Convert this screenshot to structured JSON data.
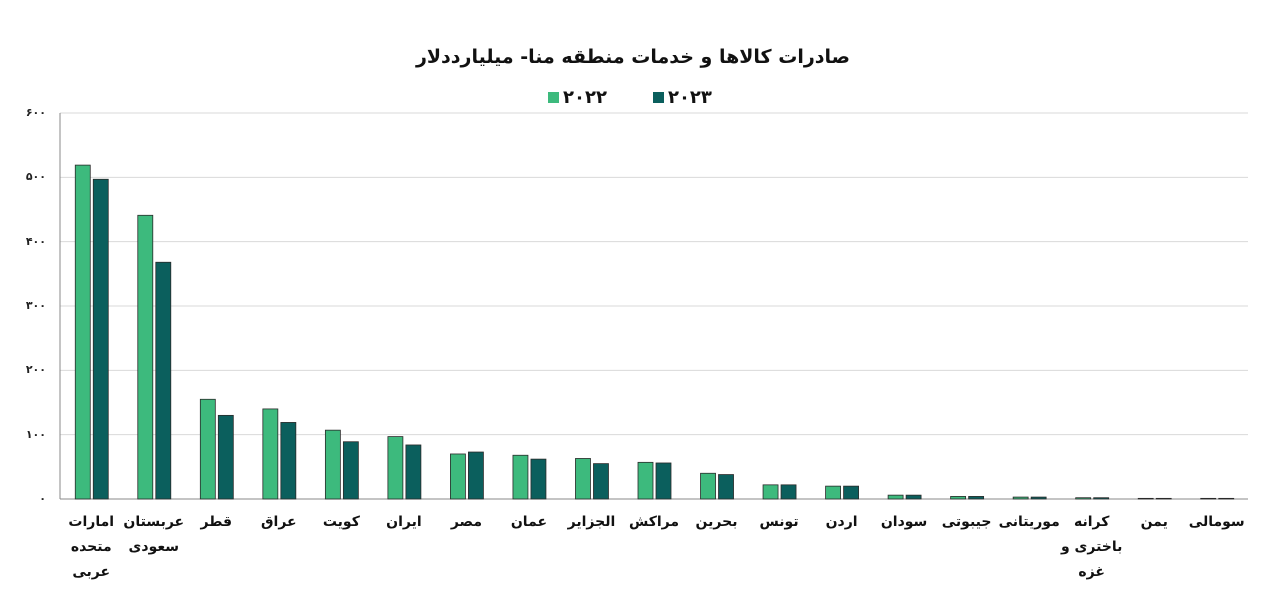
{
  "chart_data": {
    "type": "bar",
    "title": "صادرات کالاها و خدمات منطقه منا- میلیارددلار",
    "legend_position": "top",
    "ylim": [
      0,
      600
    ],
    "yticks": [
      "۰",
      "۱۰۰",
      "۲۰۰",
      "۳۰۰",
      "۴۰۰",
      "۵۰۰",
      "۶۰۰"
    ],
    "categories": [
      "امارات متحده عربی",
      "عربستان سعودی",
      "قطر",
      "عراق",
      "کویت",
      "ایران",
      "مصر",
      "عمان",
      "الجزایر",
      "مراکش",
      "بحرین",
      "تونس",
      "اردن",
      "سودان",
      "جیبوتی",
      "موریتانی",
      "کرانه باختری و غزه",
      "یمن",
      "سومالی"
    ],
    "series": [
      {
        "name": "۲۰۲۲",
        "color": "#3dba7d",
        "values": [
          519,
          441,
          155,
          140,
          107,
          97,
          70,
          68,
          63,
          57,
          40,
          22,
          20,
          6,
          4,
          3,
          2,
          1,
          1
        ]
      },
      {
        "name": "۲۰۲۳",
        "color": "#0b5f5d",
        "values": [
          497,
          368,
          130,
          119,
          89,
          84,
          73,
          62,
          55,
          56,
          38,
          22,
          20,
          6,
          4,
          3,
          2,
          1,
          1
        ]
      }
    ],
    "grid": true
  }
}
